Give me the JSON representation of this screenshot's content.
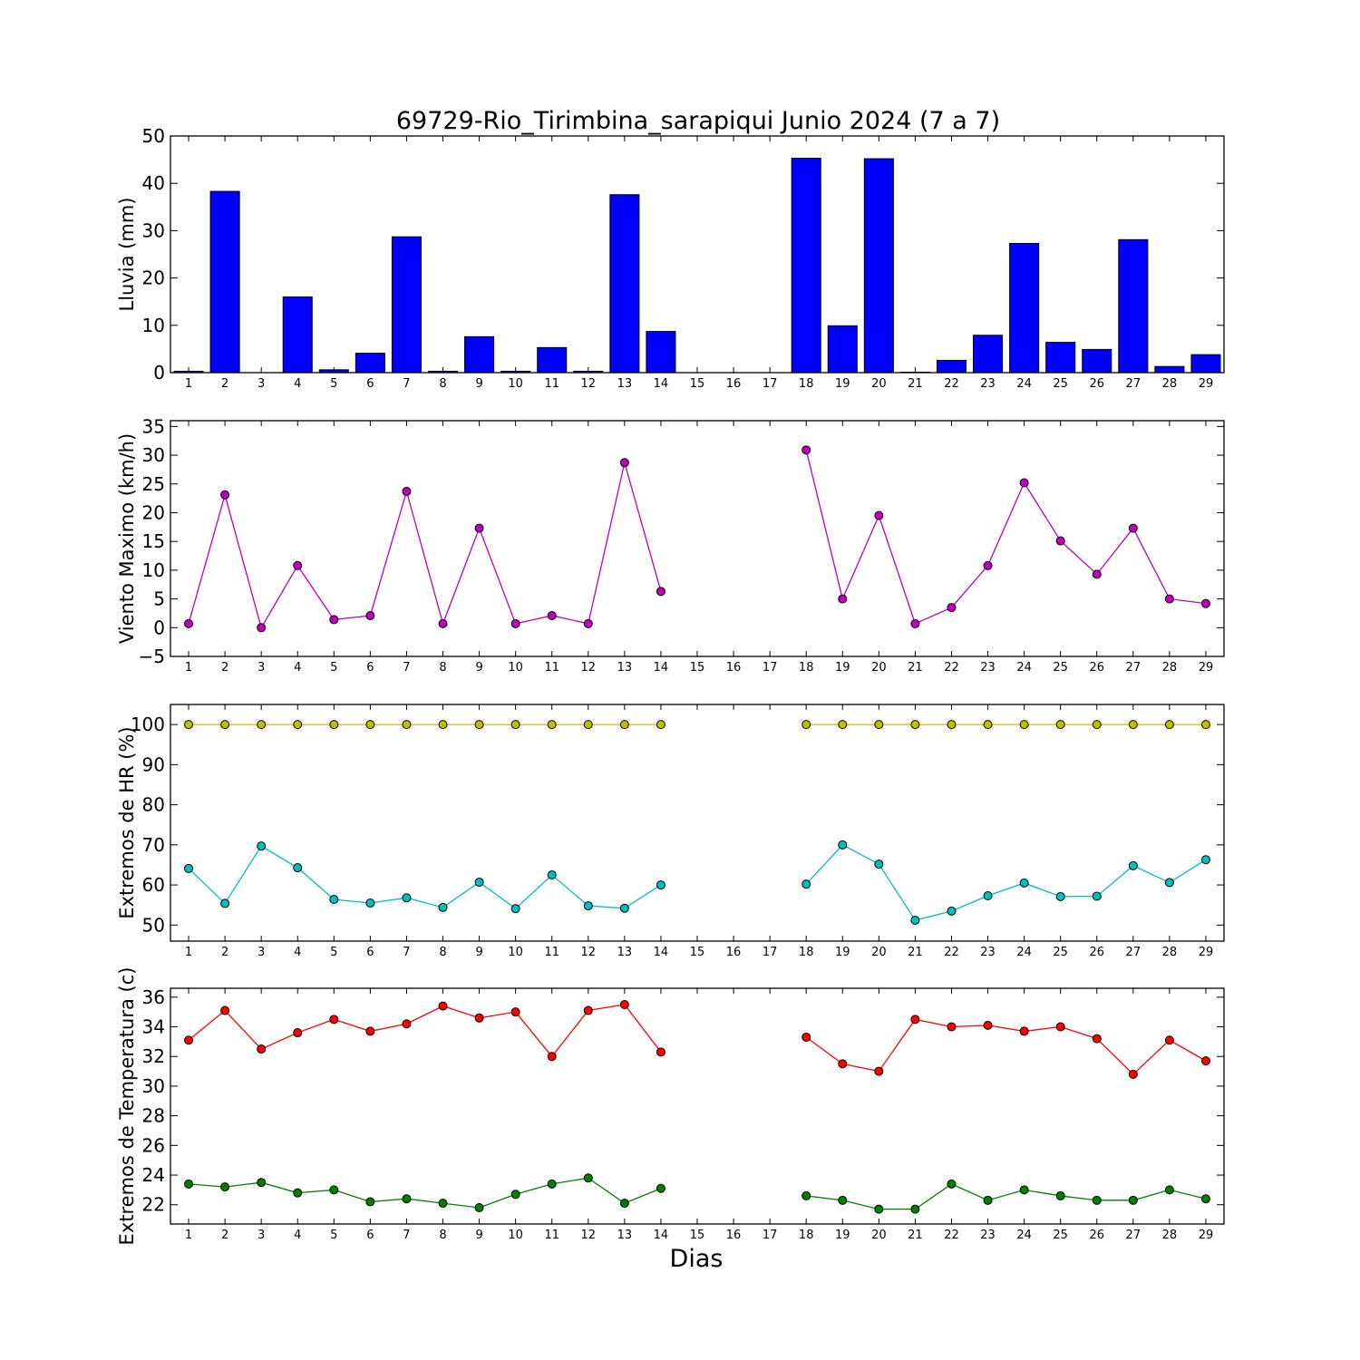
{
  "chart_data": [
    {
      "type": "bar",
      "title": "69729-Rio_Tirimbina_sarapiqui Junio 2024  (7 a 7)",
      "ylabel": "Lluvia (mm)",
      "xlabel": "",
      "categories": [
        "1",
        "2",
        "3",
        "4",
        "5",
        "6",
        "7",
        "8",
        "9",
        "10",
        "11",
        "12",
        "13",
        "14",
        "15",
        "16",
        "17",
        "18",
        "19",
        "20",
        "21",
        "22",
        "23",
        "24",
        "25",
        "26",
        "27",
        "28",
        "29"
      ],
      "values": [
        0.3,
        38.3,
        0.0,
        16.0,
        0.6,
        4.1,
        28.7,
        0.3,
        7.6,
        0.3,
        5.3,
        0.3,
        37.6,
        8.7,
        null,
        null,
        null,
        45.3,
        9.9,
        45.2,
        0.1,
        2.6,
        7.9,
        27.3,
        6.4,
        4.9,
        28.1,
        1.3,
        3.8
      ],
      "ylim": [
        0,
        50
      ],
      "yticks": [
        0,
        10,
        20,
        30,
        40,
        50
      ],
      "color": "#0000ff",
      "grid": false
    },
    {
      "type": "line",
      "ylabel": "Viento Maximo (km/h)",
      "categories": [
        "1",
        "2",
        "3",
        "4",
        "5",
        "6",
        "7",
        "8",
        "9",
        "10",
        "11",
        "12",
        "13",
        "14",
        "15",
        "16",
        "17",
        "18",
        "19",
        "20",
        "21",
        "22",
        "23",
        "24",
        "25",
        "26",
        "27",
        "28",
        "29"
      ],
      "series": [
        {
          "values": [
            0.7,
            23.1,
            0.0,
            10.8,
            1.4,
            2.1,
            23.7,
            0.7,
            17.3,
            0.7,
            2.1,
            0.7,
            28.7,
            6.3,
            null,
            null,
            null,
            30.9,
            5.0,
            19.5,
            0.7,
            3.5,
            10.8,
            25.2,
            15.1,
            9.3,
            17.3,
            5.0,
            4.2
          ],
          "color": "#bf00bf"
        }
      ],
      "ylim": [
        -5,
        36
      ],
      "yticks": [
        -5,
        0,
        5,
        10,
        15,
        20,
        25,
        30,
        35
      ],
      "grid": false
    },
    {
      "type": "line",
      "ylabel": "Extremos de HR (%)",
      "categories": [
        "1",
        "2",
        "3",
        "4",
        "5",
        "6",
        "7",
        "8",
        "9",
        "10",
        "11",
        "12",
        "13",
        "14",
        "15",
        "16",
        "17",
        "18",
        "19",
        "20",
        "21",
        "22",
        "23",
        "24",
        "25",
        "26",
        "27",
        "28",
        "29"
      ],
      "series": [
        {
          "values": [
            100,
            100,
            100,
            100,
            100,
            100,
            100,
            100,
            100,
            100,
            100,
            100,
            100,
            100,
            null,
            null,
            null,
            100,
            100,
            100,
            100,
            100,
            100,
            100,
            100,
            100,
            100,
            100,
            100
          ],
          "color": "#bfbf00"
        },
        {
          "values": [
            64.1,
            55.4,
            69.7,
            64.3,
            56.4,
            55.5,
            56.8,
            54.4,
            60.7,
            54.1,
            62.5,
            54.8,
            54.2,
            60.0,
            null,
            null,
            null,
            60.2,
            70.0,
            65.2,
            51.2,
            53.5,
            57.3,
            60.5,
            57.1,
            57.2,
            64.8,
            60.6,
            66.3
          ],
          "color": "#00bfbf"
        }
      ],
      "ylim": [
        46,
        105
      ],
      "yticks": [
        50,
        60,
        70,
        80,
        90,
        100
      ],
      "grid": false
    },
    {
      "type": "line",
      "ylabel": "Extremos de Temperatura (c)",
      "xlabel": "Dias",
      "categories": [
        "1",
        "2",
        "3",
        "4",
        "5",
        "6",
        "7",
        "8",
        "9",
        "10",
        "11",
        "12",
        "13",
        "14",
        "15",
        "16",
        "17",
        "18",
        "19",
        "20",
        "21",
        "22",
        "23",
        "24",
        "25",
        "26",
        "27",
        "28",
        "29"
      ],
      "series": [
        {
          "values": [
            33.1,
            35.1,
            32.5,
            33.6,
            34.5,
            33.7,
            34.2,
            35.4,
            34.6,
            35.0,
            32.0,
            35.1,
            35.5,
            32.3,
            null,
            null,
            null,
            33.3,
            31.5,
            31.0,
            34.5,
            34.0,
            34.1,
            33.7,
            34.0,
            33.2,
            30.8,
            33.1,
            31.7
          ],
          "color": "#ff0000"
        },
        {
          "values": [
            23.4,
            23.2,
            23.5,
            22.8,
            23.0,
            22.2,
            22.4,
            22.1,
            21.8,
            22.7,
            23.4,
            23.8,
            22.1,
            23.1,
            null,
            null,
            null,
            22.6,
            22.3,
            21.7,
            21.7,
            23.4,
            22.3,
            23.0,
            22.6,
            22.3,
            22.3,
            23.0,
            22.4
          ],
          "color": "#008000"
        }
      ],
      "ylim": [
        20.7,
        36.6
      ],
      "yticks": [
        22,
        24,
        26,
        28,
        30,
        32,
        34,
        36
      ],
      "grid": false
    }
  ]
}
